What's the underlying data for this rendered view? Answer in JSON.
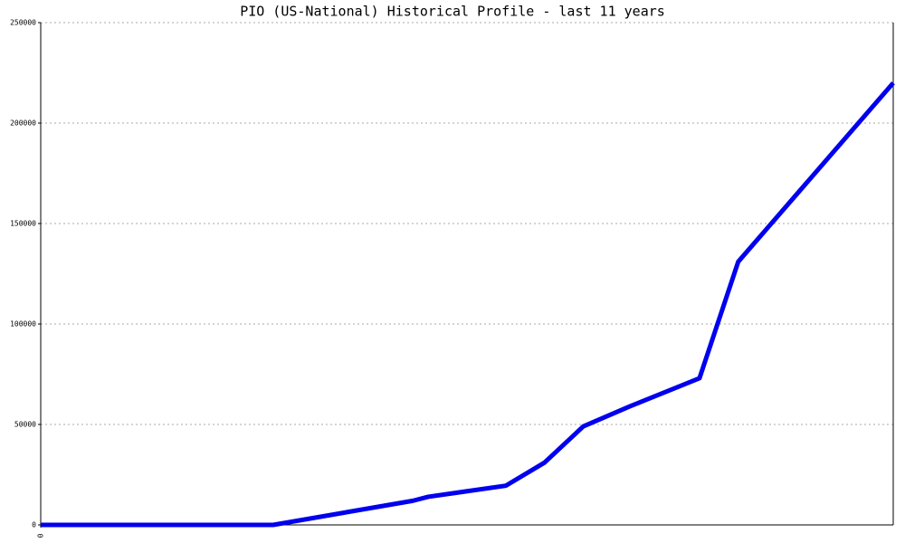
{
  "chart_data": {
    "type": "line",
    "title": "PIO (US-National) Historical Profile - last 11 years",
    "x": [
      0,
      3.0,
      4.8,
      5.0,
      6.0,
      6.5,
      7.0,
      7.6,
      8.5,
      9.0,
      11.0
    ],
    "series": [
      {
        "color": "#0000ee",
        "values": [
          0,
          0,
          12000,
          14000,
          19500,
          31000,
          49000,
          59000,
          73000,
          131000,
          220000
        ]
      }
    ],
    "xlim": [
      0,
      11
    ],
    "xticks": [
      0
    ],
    "ylim": [
      0,
      250000
    ],
    "yticks": [
      0,
      50000,
      100000,
      150000,
      200000,
      250000
    ],
    "grid": true
  }
}
